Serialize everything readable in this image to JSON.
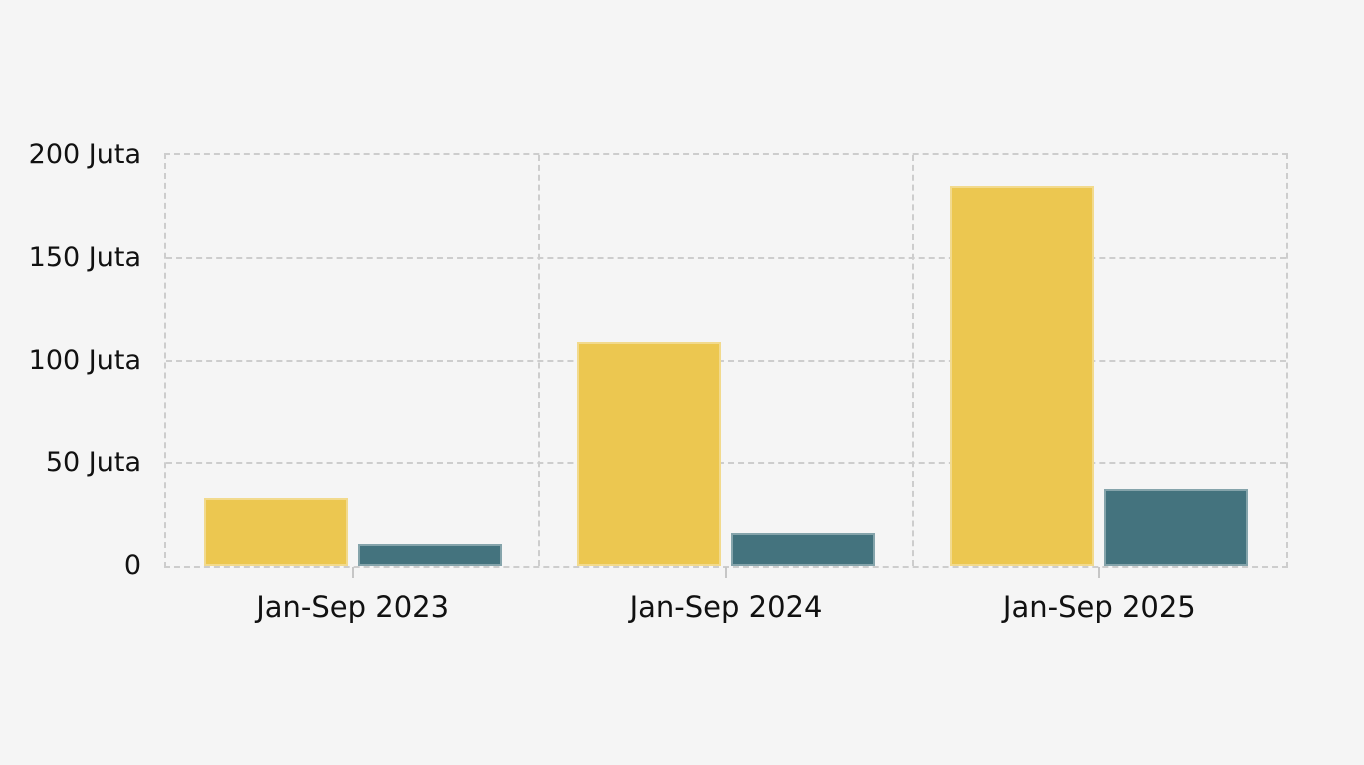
{
  "chart_data": {
    "type": "bar",
    "title": "",
    "categories": [
      "Jan-Sep 2023",
      "Jan-Sep 2024",
      "Jan-Sep 2025"
    ],
    "series": [
      {
        "name": "yellow",
        "color": "#ECC750",
        "values": [
          33,
          109,
          185
        ]
      },
      {
        "name": "teal",
        "color": "#44737E",
        "values": [
          10.5,
          16,
          37.5
        ]
      }
    ],
    "xlabel": "",
    "ylabel": "",
    "unit": "Juta",
    "y_ticks": [
      "200 Juta",
      "150 Juta",
      "100 Juta",
      "50 Juta",
      "0"
    ],
    "ylim": [
      0,
      200
    ],
    "grid": "dashed horizontal and vertical, framed plot area",
    "legend_position": "none",
    "colors": {
      "background": "#f5f5f5",
      "gridline": "#cdcdcd",
      "text": "#111111",
      "bar_stroke": "rgba(255,255,255,0.35)"
    }
  }
}
